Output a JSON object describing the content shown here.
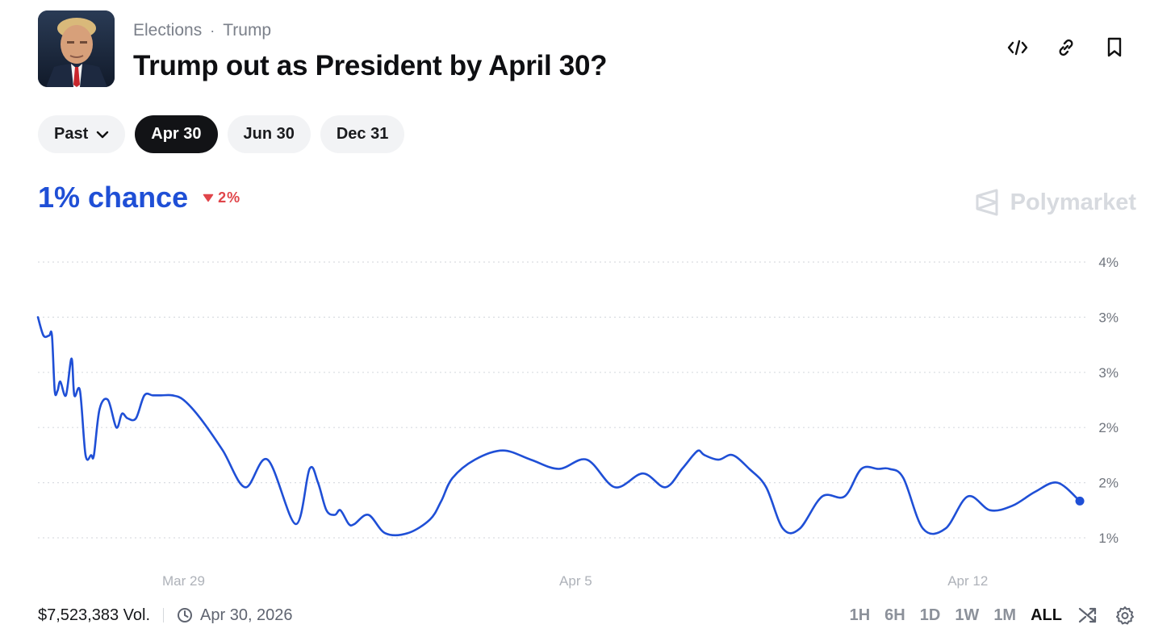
{
  "header": {
    "category": "Elections",
    "separator": "·",
    "subcategory": "Trump",
    "title": "Trump out as President by April 30?",
    "icons": [
      "embed-icon",
      "link-icon",
      "bookmark-icon"
    ]
  },
  "date_pills": [
    {
      "label": "Past",
      "active": false,
      "dropdown": true
    },
    {
      "label": "Apr 30",
      "active": true
    },
    {
      "label": "Jun 30",
      "active": false
    },
    {
      "label": "Dec 31",
      "active": false
    }
  ],
  "probability": {
    "value": "1% chance",
    "delta": "2%",
    "delta_direction": "down",
    "color": "#1f4fd6",
    "delta_color": "#e0454a"
  },
  "brand": {
    "name": "Polymarket"
  },
  "footer": {
    "volume": "$7,523,383 Vol.",
    "end_date": "Apr 30, 2026",
    "ranges": [
      "1H",
      "6H",
      "1D",
      "1W",
      "1M",
      "ALL"
    ],
    "active_range": "ALL"
  },
  "chart_data": {
    "type": "line",
    "y_tick_labels": [
      "4%",
      "3%",
      "3%",
      "2%",
      "2%",
      "1%"
    ],
    "ylim": [
      1.0,
      4.0
    ],
    "x_tick_labels": [
      "Mar 29",
      "Apr 5",
      "Apr 12"
    ],
    "x_tick_days": [
      29,
      36,
      43
    ],
    "xlim": [
      26.4,
      45.1
    ],
    "grid": true,
    "line_color": "#1f4fd6",
    "series": [
      {
        "x": [
          26.4,
          26.5,
          26.6,
          26.65,
          26.7,
          26.75,
          26.8,
          26.9,
          27.0,
          27.05,
          27.15,
          27.25,
          27.35,
          27.4,
          27.5,
          27.65,
          27.8,
          27.9,
          28.0,
          28.15,
          28.3,
          28.45,
          28.6,
          28.8,
          29.0,
          29.3,
          29.7,
          30.1,
          30.5,
          31.0,
          31.25,
          31.4,
          31.55,
          31.7,
          31.8,
          31.95,
          32.05,
          32.3,
          32.6,
          33.0,
          33.4,
          33.6,
          33.8,
          34.2,
          34.7,
          35.2,
          35.7,
          36.2,
          36.7,
          37.2,
          37.6,
          37.9,
          38.1,
          38.2,
          38.3,
          38.55,
          38.8,
          39.1,
          39.4,
          39.7,
          40.0,
          40.4,
          40.8,
          41.1,
          41.4,
          41.6,
          41.85,
          42.2,
          42.6,
          43.0,
          43.4,
          43.8,
          44.2,
          44.6,
          45.0
        ],
        "y": [
          3.4,
          3.2,
          3.2,
          3.2,
          2.6,
          2.6,
          2.7,
          2.55,
          2.95,
          2.55,
          2.6,
          1.9,
          1.9,
          1.9,
          2.4,
          2.5,
          2.2,
          2.35,
          2.3,
          2.3,
          2.55,
          2.55,
          2.55,
          2.55,
          2.5,
          2.3,
          1.95,
          1.55,
          1.85,
          1.15,
          1.75,
          1.6,
          1.3,
          1.25,
          1.3,
          1.15,
          1.15,
          1.25,
          1.05,
          1.05,
          1.2,
          1.4,
          1.65,
          1.85,
          1.95,
          1.85,
          1.75,
          1.85,
          1.55,
          1.7,
          1.55,
          1.75,
          1.9,
          1.95,
          1.9,
          1.85,
          1.9,
          1.75,
          1.55,
          1.1,
          1.1,
          1.45,
          1.45,
          1.75,
          1.75,
          1.75,
          1.65,
          1.1,
          1.1,
          1.45,
          1.3,
          1.35,
          1.5,
          1.6,
          1.4
        ]
      }
    ]
  }
}
